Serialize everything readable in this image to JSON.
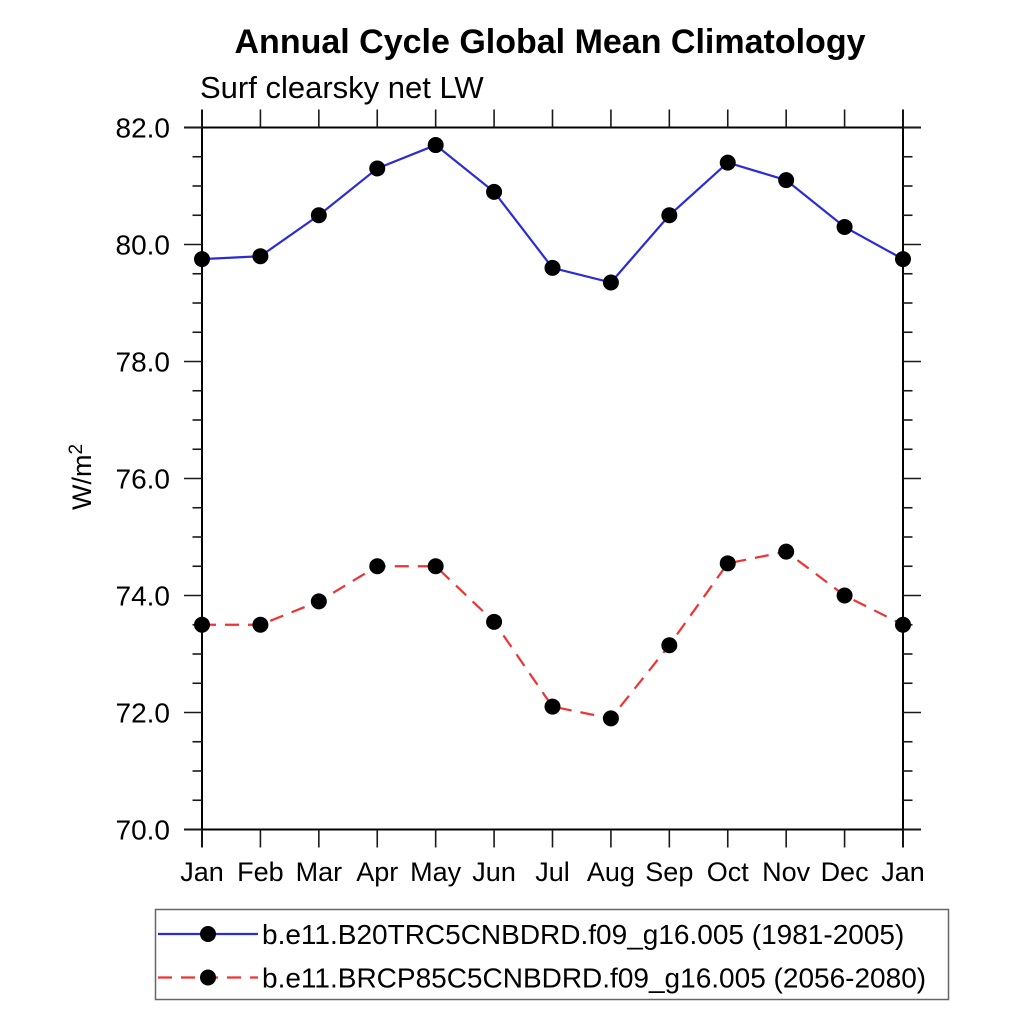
{
  "chart_data": {
    "type": "line",
    "title": "Annual Cycle Global Mean Climatology",
    "subtitle": "Surf clearsky net LW",
    "ylabel": {
      "base": "W/m",
      "superscript": "2"
    },
    "x_categories": [
      "Jan",
      "Feb",
      "Mar",
      "Apr",
      "May",
      "Jun",
      "Jul",
      "Aug",
      "Sep",
      "Oct",
      "Nov",
      "Dec",
      "Jan"
    ],
    "ylim": [
      70.0,
      82.0
    ],
    "yticks": [
      {
        "value": 82.0,
        "label": "82.0"
      },
      {
        "value": 80.0,
        "label": "80.0"
      },
      {
        "value": 78.0,
        "label": "78.0"
      },
      {
        "value": 76.0,
        "label": "76.0"
      },
      {
        "value": 74.0,
        "label": "74.0"
      },
      {
        "value": 72.0,
        "label": "72.0"
      },
      {
        "value": 70.0,
        "label": "70.0"
      }
    ],
    "ytick_minor_step": 0.5,
    "grid": false,
    "legend_position": "bottom",
    "marker": {
      "shape": "filled-circle",
      "color": "#000000",
      "radius": 8
    },
    "series": [
      {
        "name": "b.e11.B20TRC5CNBDRD.f09_g16.005 (1981-2005)",
        "color": "#2b2bd9",
        "line_style": "solid",
        "values": [
          79.75,
          79.8,
          80.5,
          81.3,
          81.7,
          80.9,
          79.6,
          79.35,
          80.5,
          81.4,
          81.1,
          80.3,
          79.75
        ]
      },
      {
        "name": "b.e11.BRCP85C5CNBDRD.f09_g16.005 (2056-2080)",
        "color": "#ee3333",
        "line_style": "dashed",
        "values": [
          73.5,
          73.5,
          73.9,
          74.5,
          74.5,
          73.55,
          72.1,
          71.9,
          73.15,
          74.55,
          74.75,
          74.0,
          73.5
        ]
      }
    ]
  }
}
